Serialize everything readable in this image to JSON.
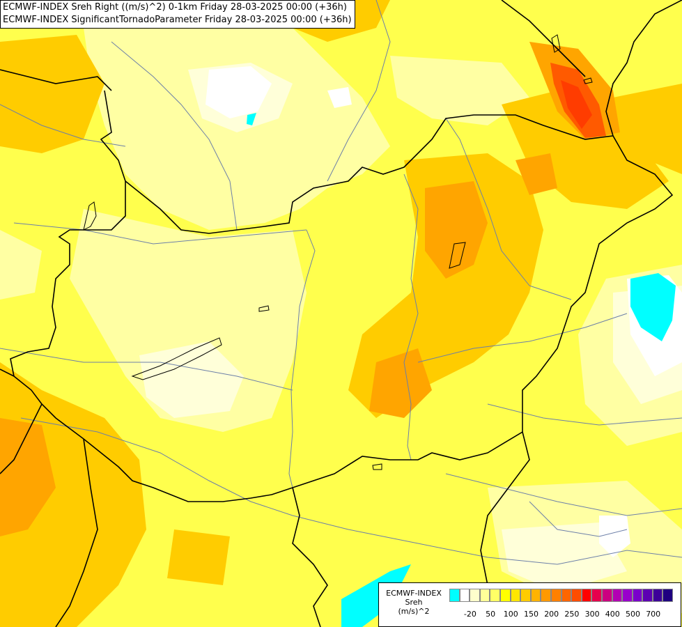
{
  "title": {
    "line1": "ECMWF-INDEX Sreh Right ((m/s)^2) 0-1km Friday 28-03-2025 00:00 (+36h)",
    "line2": "ECMWF-INDEX SignificantTornadoParameter Friday 28-03-2025 00:00 (+36h)"
  },
  "legend": {
    "line1": "ECMWF-INDEX",
    "line2": "Sreh",
    "line3": "(m/s)^2",
    "colors": [
      "#00ffff",
      "#ffffff",
      "#ffffcc",
      "#ffff99",
      "#ffff66",
      "#ffff00",
      "#ffe600",
      "#ffcc00",
      "#ffb300",
      "#ff9900",
      "#ff8000",
      "#ff6600",
      "#ff4d00",
      "#ff0000",
      "#e6004d",
      "#cc0080",
      "#b300b3",
      "#9900cc",
      "#7a00cc",
      "#5c00b3",
      "#3d0099",
      "#1f0080"
    ],
    "ticks": [
      {
        "label": "-20",
        "index": 1
      },
      {
        "label": "50",
        "index": 3
      },
      {
        "label": "100",
        "index": 5
      },
      {
        "label": "150",
        "index": 7
      },
      {
        "label": "200",
        "index": 9
      },
      {
        "label": "250",
        "index": 11
      },
      {
        "label": "300",
        "index": 13
      },
      {
        "label": "400",
        "index": 15
      },
      {
        "label": "500",
        "index": 17
      },
      {
        "label": "700",
        "index": 19
      }
    ]
  }
}
